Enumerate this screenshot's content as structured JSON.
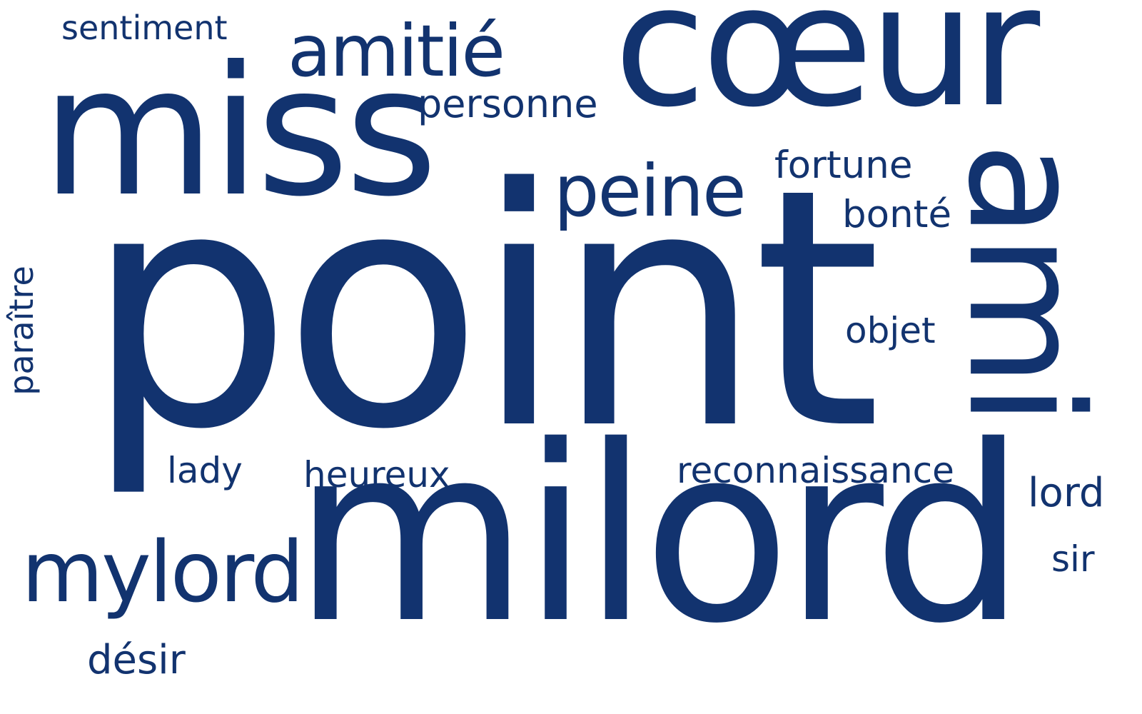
{
  "word_cloud": {
    "color": "#12336f",
    "background": "#ffffff",
    "words": [
      {
        "text": "point",
        "orientation": "horizontal"
      },
      {
        "text": "milord",
        "orientation": "horizontal"
      },
      {
        "text": "cœur",
        "orientation": "horizontal"
      },
      {
        "text": "miss",
        "orientation": "horizontal"
      },
      {
        "text": "ami",
        "orientation": "vertical"
      },
      {
        "text": "mylord",
        "orientation": "horizontal"
      },
      {
        "text": "amitié",
        "orientation": "horizontal"
      },
      {
        "text": "peine",
        "orientation": "horizontal"
      },
      {
        "text": "personne",
        "orientation": "horizontal"
      },
      {
        "text": "sentiment",
        "orientation": "horizontal"
      },
      {
        "text": "fortune",
        "orientation": "horizontal"
      },
      {
        "text": "bonté",
        "orientation": "horizontal"
      },
      {
        "text": "objet",
        "orientation": "horizontal"
      },
      {
        "text": "paraître",
        "orientation": "vertical"
      },
      {
        "text": "lady",
        "orientation": "horizontal"
      },
      {
        "text": "heureux",
        "orientation": "horizontal"
      },
      {
        "text": "reconnaissance",
        "orientation": "horizontal"
      },
      {
        "text": "lord",
        "orientation": "horizontal"
      },
      {
        "text": "sir",
        "orientation": "horizontal"
      },
      {
        "text": "désir",
        "orientation": "horizontal"
      }
    ]
  }
}
